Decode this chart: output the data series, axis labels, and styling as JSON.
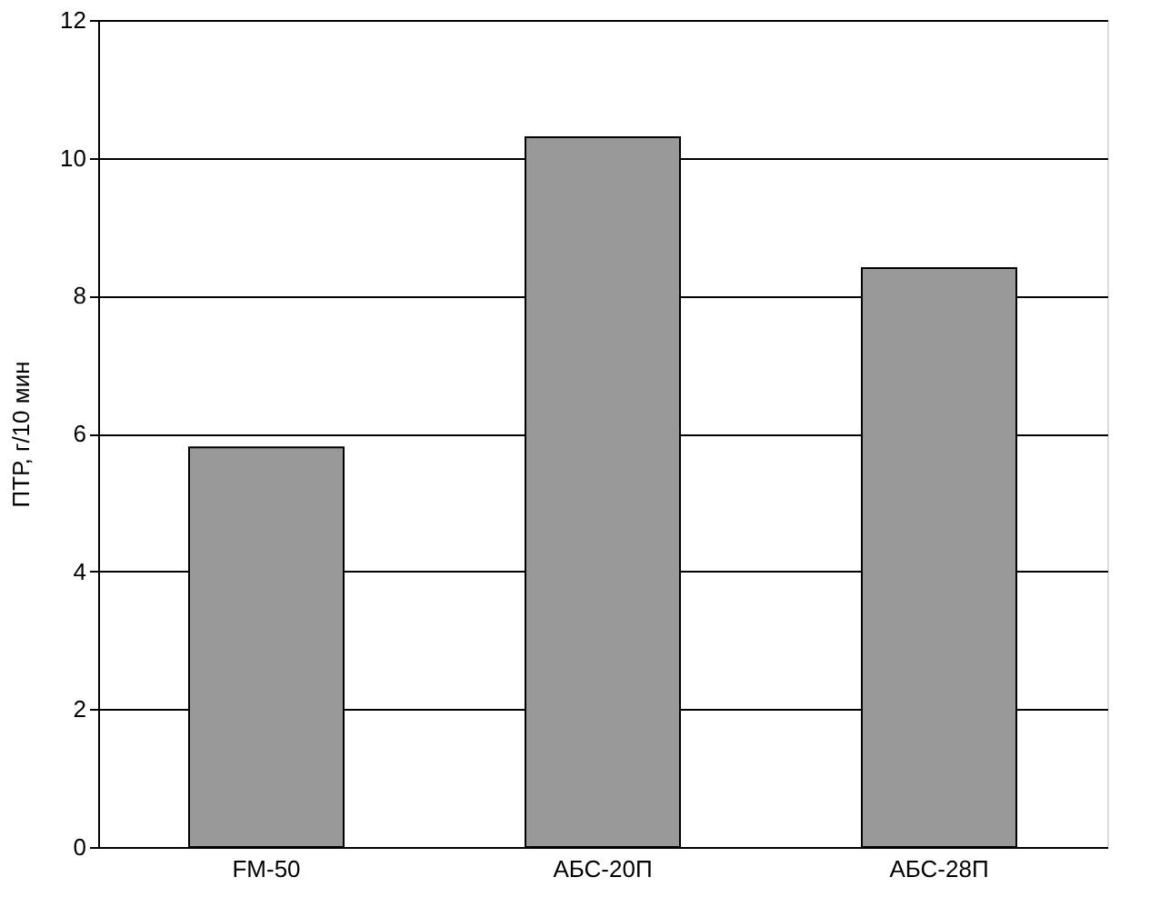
{
  "chart_data": {
    "type": "bar",
    "ylabel": "ПТР, г/10 мин",
    "categories": [
      "FM-50",
      "АБС-20П",
      "АБС-28П"
    ],
    "values": [
      5.8,
      10.3,
      8.4
    ],
    "color": "#999999",
    "ylim": [
      0,
      12
    ],
    "yticks": [
      0,
      2,
      4,
      6,
      8,
      10,
      12
    ],
    "grid": "y"
  }
}
